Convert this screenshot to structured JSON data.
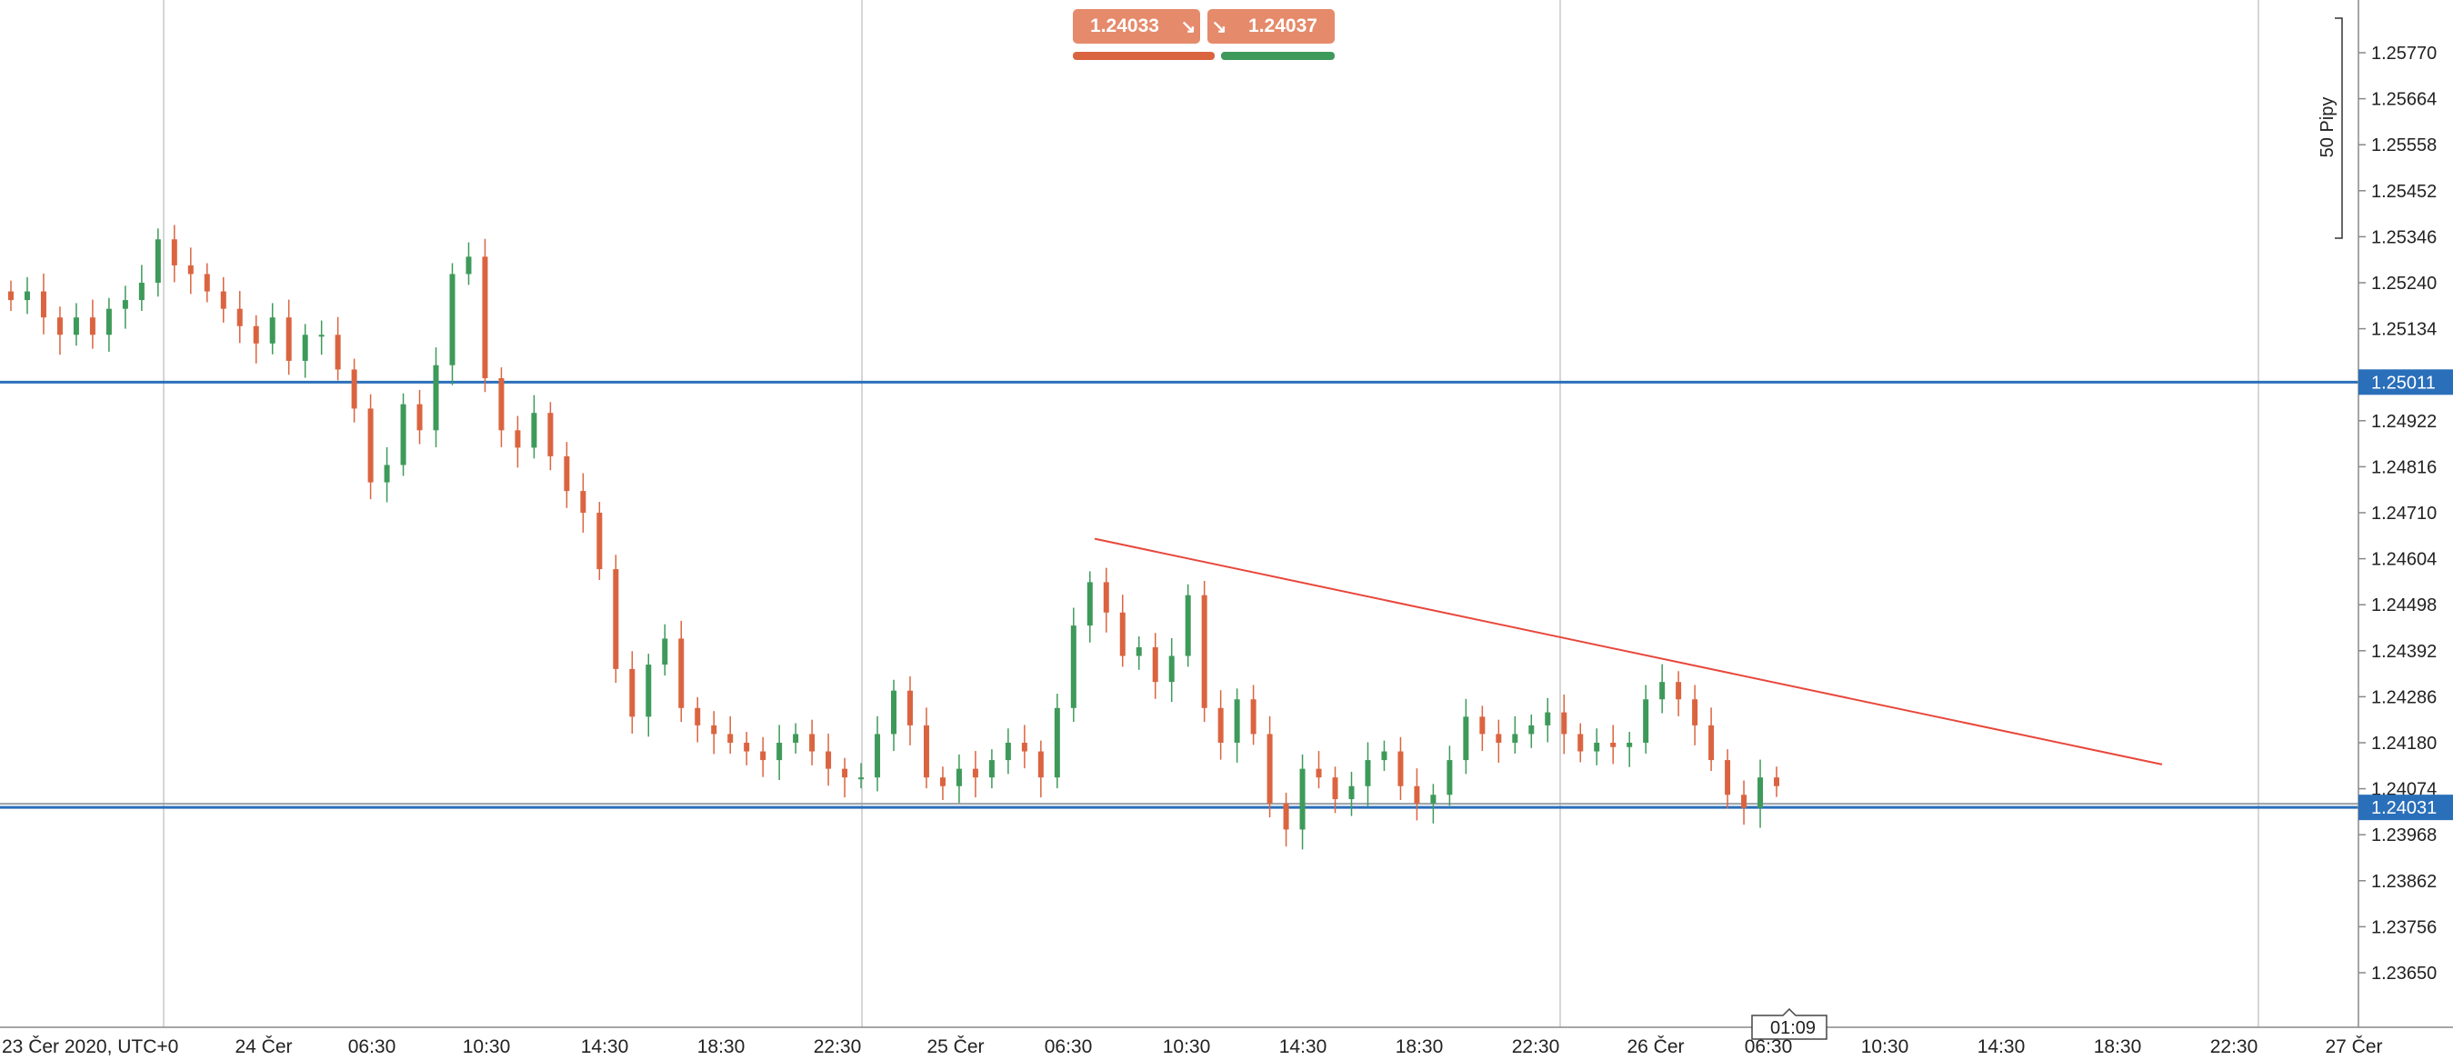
{
  "quote": {
    "sell_price": "1.24033",
    "buy_price": "1.24037",
    "sell_arrow_icon": "arrow-down-right-icon",
    "buy_arrow_icon": "arrow-down-right-icon",
    "sell_color": "#e58a6b",
    "sell_bar_color": "#db6440",
    "buy_bar_color": "#3e9a5a"
  },
  "chart_data": {
    "type": "candlestick",
    "x_tick_labels": [
      "23 Čer 2020, UTC+0",
      "24 Čer",
      "06:30",
      "10:30",
      "14:30",
      "18:30",
      "22:30",
      "25 Čer",
      "06:30",
      "10:30",
      "14:30",
      "18:30",
      "22:30",
      "26 Čer",
      "06:30",
      "10:30",
      "14:30",
      "18:30",
      "22:30",
      "27 Čer"
    ],
    "y_tick_labels": [
      "1.25770",
      "1.25664",
      "1.25558",
      "1.25452",
      "1.25346",
      "1.25240",
      "1.25134",
      "1.24922",
      "1.24816",
      "1.24710",
      "1.24604",
      "1.24498",
      "1.24392",
      "1.24286",
      "1.24180",
      "1.24074",
      "1.23968",
      "1.23862",
      "1.23756",
      "1.23650"
    ],
    "ylim": [
      1.235,
      1.2583
    ],
    "pip_scale_label": "50 Pipy",
    "countdown_label": "01:09",
    "colors": {
      "up": "#3e9a5a",
      "down": "#db6440",
      "hline": "#2a6fba",
      "trendline": "#e8473c",
      "grid": "#c8c8c8"
    },
    "horizontal_lines": [
      {
        "price": 1.25011,
        "label": "1.25011"
      },
      {
        "price": 1.24031,
        "label": "1.24031"
      }
    ],
    "trendline": {
      "start": {
        "time": "25 Čer 06:30",
        "price": 1.2465
      },
      "end": {
        "time": "26 Čer 19:30",
        "price": 1.2413
      }
    },
    "day_separators": [
      "24 Čer 00:00",
      "25 Čer 00:00",
      "26 Čer 00:00",
      "27 Čer 00:00"
    ],
    "series": [
      {
        "name": "",
        "close_path": [
          1.252,
          1.2522,
          1.2516,
          1.2512,
          1.2516,
          1.2512,
          1.2518,
          1.252,
          1.2524,
          1.2534,
          1.2528,
          1.2526,
          1.2522,
          1.2518,
          1.2514,
          1.251,
          1.2516,
          1.2506,
          1.2512,
          1.2512,
          1.2504,
          1.2495,
          1.2478,
          1.2482,
          1.2496,
          1.249,
          1.2505,
          1.2526,
          1.253,
          1.2502,
          1.249,
          1.2486,
          1.2494,
          1.2484,
          1.2476,
          1.2471,
          1.2458,
          1.2435,
          1.2424,
          1.2436,
          1.2442,
          1.2426,
          1.2422,
          1.242,
          1.2418,
          1.2416,
          1.2414,
          1.2418,
          1.242,
          1.2416,
          1.2412,
          1.241,
          1.241,
          1.242,
          1.243,
          1.2422,
          1.241,
          1.2408,
          1.2412,
          1.241,
          1.2414,
          1.2418,
          1.2416,
          1.241,
          1.2426,
          1.2445,
          1.2455,
          1.2448,
          1.2438,
          1.244,
          1.2432,
          1.2438,
          1.2452,
          1.2426,
          1.2418,
          1.2428,
          1.242,
          1.2404,
          1.2398,
          1.2412,
          1.241,
          1.2405,
          1.2408,
          1.2414,
          1.2416,
          1.2408,
          1.2404,
          1.2406,
          1.2414,
          1.2424,
          1.242,
          1.2418,
          1.242,
          1.2422,
          1.2425,
          1.242,
          1.2416,
          1.2418,
          1.2417,
          1.2418,
          1.2428,
          1.2432,
          1.2428,
          1.2422,
          1.2414,
          1.2406,
          1.2403,
          1.241,
          1.2408
        ]
      }
    ]
  }
}
